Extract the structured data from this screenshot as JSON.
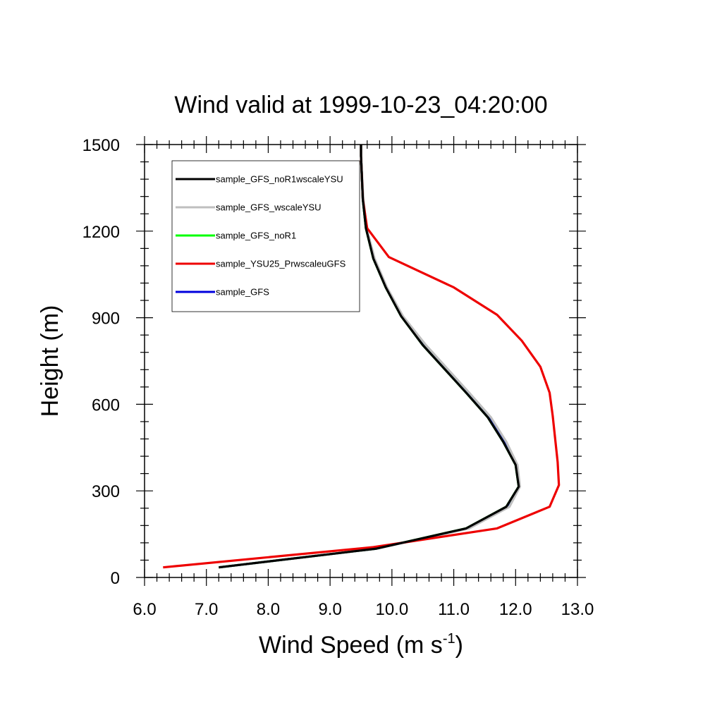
{
  "chart_data": {
    "type": "line",
    "title": "Wind valid at 1999-10-23_04:20:00",
    "xlabel": "Wind Speed (m s",
    "xlabel_sup": "-1",
    "xlabel_end": ")",
    "ylabel": "Height (m)",
    "xlim": [
      6.0,
      13.0
    ],
    "ylim": [
      0,
      1500
    ],
    "xticks": [
      "6.0",
      "7.0",
      "8.0",
      "9.0",
      "10.0",
      "11.0",
      "12.0",
      "13.0"
    ],
    "yticks": [
      "0",
      "300",
      "600",
      "900",
      "1200",
      "1500"
    ],
    "grid": false,
    "legend_position": "top-left",
    "series": [
      {
        "name": "sample_GFS_noR1wscaleYSU",
        "color": "#000000",
        "x": [
          7.2,
          9.75,
          11.2,
          11.85,
          12.05,
          12.0,
          11.8,
          11.55,
          11.2,
          10.5,
          10.15,
          9.9,
          9.7,
          9.58,
          9.53,
          9.51,
          9.5,
          9.5
        ],
        "y": [
          35,
          100,
          170,
          245,
          315,
          390,
          470,
          555,
          640,
          805,
          905,
          1005,
          1105,
          1210,
          1310,
          1410,
          1460,
          1500
        ]
      },
      {
        "name": "sample_GFS_wscaleYSU",
        "color": "#bfbfbf",
        "x": [
          7.2,
          9.75,
          11.25,
          11.9,
          12.07,
          12.03,
          11.85,
          11.6,
          11.25,
          10.55,
          10.18,
          9.92,
          9.72,
          9.59,
          9.54,
          9.51,
          9.5,
          9.5
        ],
        "y": [
          35,
          100,
          170,
          245,
          315,
          390,
          470,
          555,
          640,
          805,
          905,
          1005,
          1105,
          1210,
          1310,
          1410,
          1460,
          1500
        ]
      },
      {
        "name": "sample_GFS_noR1",
        "color": "#00ff00",
        "x": [
          7.2,
          9.75,
          11.2,
          11.85,
          12.05,
          12.0,
          11.8,
          11.55,
          11.2,
          10.5,
          10.15,
          9.9,
          9.7,
          9.58,
          9.53,
          9.51,
          9.5,
          9.5
        ],
        "y": [
          35,
          100,
          170,
          245,
          315,
          390,
          470,
          555,
          640,
          805,
          905,
          1005,
          1105,
          1210,
          1310,
          1410,
          1460,
          1500
        ]
      },
      {
        "name": "sample_YSU25_PrwscaleuGFS",
        "color": "#ee0000",
        "x": [
          6.3,
          9.7,
          11.7,
          12.55,
          12.7,
          12.68,
          12.6,
          12.55,
          12.4,
          12.1,
          11.7,
          11.0,
          9.95,
          9.6,
          9.53,
          9.51,
          9.5,
          9.5
        ],
        "y": [
          35,
          105,
          170,
          245,
          320,
          400,
          560,
          640,
          730,
          820,
          910,
          1005,
          1110,
          1210,
          1310,
          1410,
          1460,
          1500
        ]
      },
      {
        "name": "sample_GFS",
        "color": "#0000dd",
        "x": [
          7.2,
          9.75,
          11.22,
          11.87,
          12.06,
          12.01,
          11.82,
          11.57,
          11.22,
          10.52,
          10.16,
          9.91,
          9.71,
          9.58,
          9.53,
          9.51,
          9.5,
          9.5
        ],
        "y": [
          35,
          100,
          170,
          245,
          315,
          390,
          470,
          555,
          640,
          805,
          905,
          1005,
          1105,
          1210,
          1310,
          1410,
          1460,
          1500
        ]
      }
    ]
  }
}
